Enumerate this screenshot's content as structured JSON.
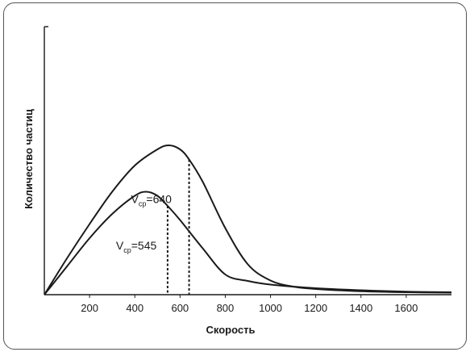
{
  "chart_data": {
    "type": "line",
    "xlabel": "Скорость",
    "ylabel": "Количество частиц",
    "xlim": [
      0,
      1800
    ],
    "x_ticks": [
      200,
      400,
      600,
      800,
      1000,
      1200,
      1400,
      1600
    ],
    "series": [
      {
        "x": [
          0,
          100,
          200,
          300,
          400,
          450,
          500,
          545,
          600,
          700,
          800,
          900,
          1000,
          1200,
          1400,
          1600,
          1800
        ],
        "y": [
          0,
          0.14,
          0.28,
          0.4,
          0.49,
          0.51,
          0.49,
          0.44,
          0.37,
          0.23,
          0.1,
          0.068,
          0.05,
          0.032,
          0.022,
          0.015,
          0.012
        ]
      },
      {
        "x": [
          0,
          100,
          200,
          300,
          400,
          500,
          550,
          600,
          640,
          700,
          800,
          900,
          1000,
          1100,
          1200,
          1400,
          1600,
          1800
        ],
        "y": [
          0,
          0.18,
          0.35,
          0.51,
          0.64,
          0.72,
          0.74,
          0.72,
          0.67,
          0.56,
          0.33,
          0.15,
          0.07,
          0.04,
          0.028,
          0.017,
          0.012,
          0.01
        ]
      }
    ],
    "annotations": [
      {
        "label_main": "V",
        "label_sub": "ср",
        "label_value": "=545",
        "x": 545
      },
      {
        "label_main": "V",
        "label_sub": "ср",
        "label_value": "=640",
        "x": 640
      }
    ]
  }
}
